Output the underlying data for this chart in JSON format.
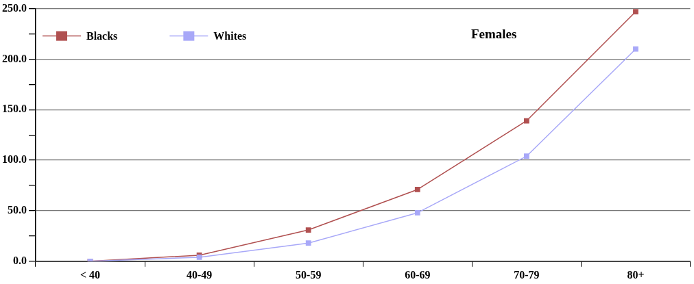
{
  "chart_data": {
    "type": "line",
    "title": "Females",
    "categories": [
      "< 40",
      "40-49",
      "50-59",
      "60-69",
      "70-79",
      "80+"
    ],
    "series": [
      {
        "name": "Blacks",
        "color": "#b05050",
        "values": [
          0,
          6,
          31,
          71,
          139,
          247
        ]
      },
      {
        "name": "Whites",
        "color": "#a8a8f8",
        "values": [
          0,
          4,
          18,
          48,
          104,
          210
        ]
      }
    ],
    "ylim": [
      0,
      250
    ],
    "yticks": [
      {
        "value": 0,
        "label": "0.0"
      },
      {
        "value": 25,
        "label": null
      },
      {
        "value": 50,
        "label": "50.0"
      },
      {
        "value": 75,
        "label": null
      },
      {
        "value": 100,
        "label": "100.0"
      },
      {
        "value": 125,
        "label": null
      },
      {
        "value": 150,
        "label": "150.0"
      },
      {
        "value": 175,
        "label": null
      },
      {
        "value": 200,
        "label": "200.0"
      },
      {
        "value": 225,
        "label": null
      },
      {
        "value": 250,
        "label": "250.0"
      }
    ],
    "grid": "y",
    "legend": "top left",
    "marker": "square",
    "line_style": "solid"
  }
}
